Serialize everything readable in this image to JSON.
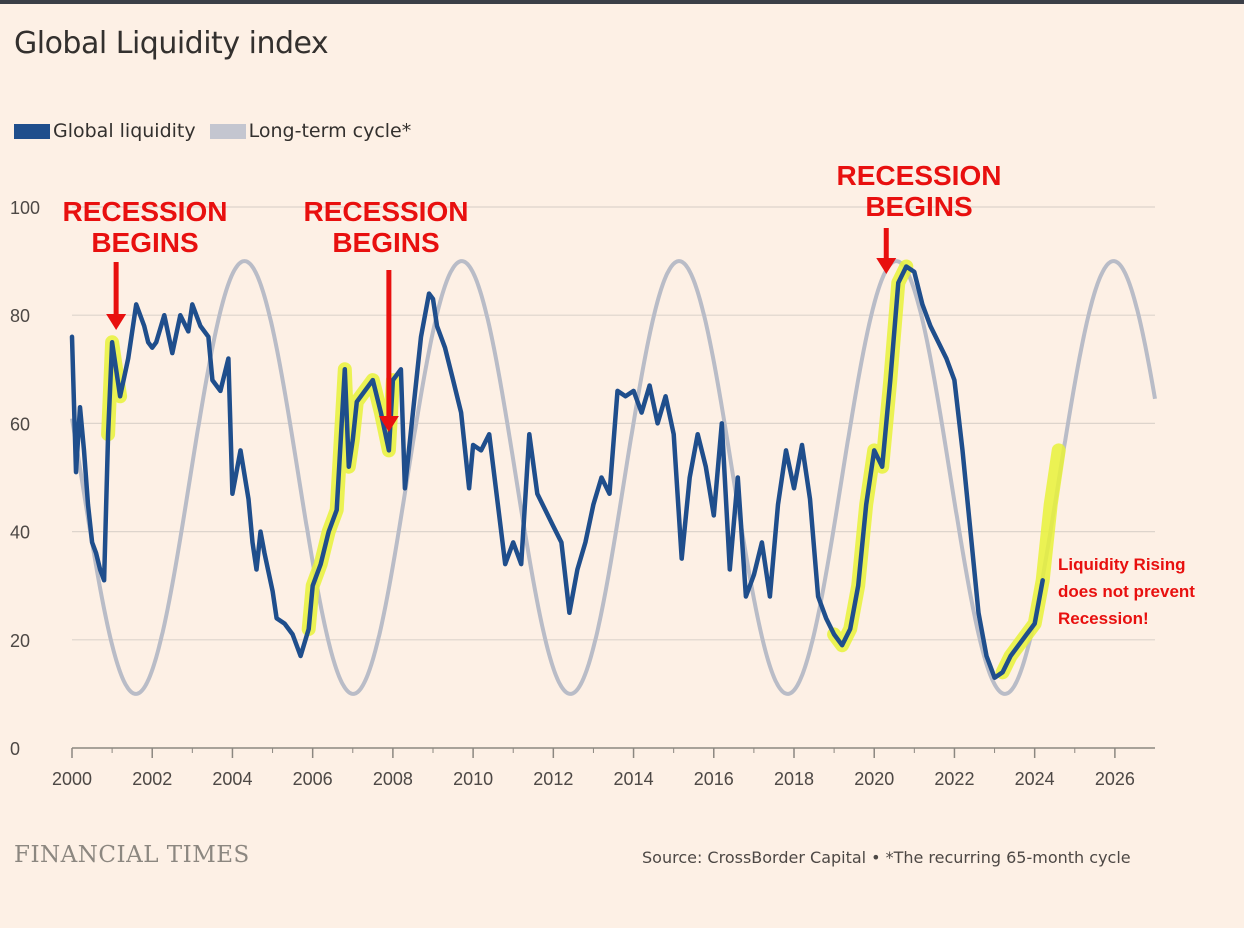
{
  "title": "Global Liquidity index",
  "legend": {
    "global_liquidity": "Global liquidity",
    "long_term_cycle": "Long-term cycle*"
  },
  "colors": {
    "global_liquidity": "#1f4e8c",
    "long_term_cycle": "#b9bcc7",
    "highlight": "#e8f23a",
    "annotation": "#e8100f",
    "grid": "#ddd4cc"
  },
  "annotations": {
    "recession_1": {
      "line1": "RECESSION",
      "line2": "BEGINS",
      "year": 2001.1
    },
    "recession_2": {
      "line1": "RECESSION",
      "line2": "BEGINS",
      "year": 2007.9
    },
    "recession_3": {
      "line1": "RECESSION",
      "line2": "BEGINS",
      "year": 2020.3
    },
    "note": {
      "line1": "Liquidity Rising",
      "line2": "does not prevent",
      "line3": "Recession!"
    }
  },
  "footer": {
    "logo": "FINANCIAL TIMES",
    "source": "Source: CrossBorder Capital",
    "bullet": "•",
    "footnote": "*The recurring 65-month cycle"
  },
  "chart_data": {
    "type": "line",
    "title": "Global Liquidity index",
    "xlabel": "",
    "ylabel": "",
    "xlim": [
      2000,
      2027
    ],
    "ylim": [
      0,
      100
    ],
    "x_ticks": [
      2000,
      2002,
      2004,
      2006,
      2008,
      2010,
      2012,
      2014,
      2016,
      2018,
      2020,
      2022,
      2024,
      2026
    ],
    "x_tick_labels": [
      "2000",
      "2002",
      "2004",
      "2006",
      "2008",
      "2010",
      "2012",
      "2014",
      "2016",
      "2018",
      "2020",
      "2022",
      "2024",
      "2026"
    ],
    "y_ticks": [
      0,
      20,
      40,
      60,
      80,
      100
    ],
    "y_tick_labels": [
      "0",
      "20",
      "40",
      "60",
      "80",
      "100"
    ],
    "grid": true,
    "series": [
      {
        "name": "Long-term cycle*",
        "kind": "cycle",
        "center": 50,
        "amplitude": 40,
        "period_months": 65,
        "peak_at": 2004.3,
        "x_start": 2000,
        "x_end": 2027
      },
      {
        "name": "Global liquidity",
        "x": [
          2000.0,
          2000.1,
          2000.2,
          2000.3,
          2000.4,
          2000.5,
          2000.6,
          2000.7,
          2000.8,
          2000.9,
          2001.0,
          2001.1,
          2001.2,
          2001.4,
          2001.6,
          2001.8,
          2001.9,
          2002.0,
          2002.1,
          2002.3,
          2002.5,
          2002.7,
          2002.9,
          2003.0,
          2003.2,
          2003.4,
          2003.5,
          2003.7,
          2003.9,
          2004.0,
          2004.2,
          2004.4,
          2004.5,
          2004.6,
          2004.7,
          2004.8,
          2005.0,
          2005.1,
          2005.3,
          2005.5,
          2005.7,
          2005.9,
          2006.0,
          2006.2,
          2006.4,
          2006.6,
          2006.8,
          2006.9,
          2007.0,
          2007.1,
          2007.3,
          2007.5,
          2007.7,
          2007.9,
          2008.0,
          2008.2,
          2008.3,
          2008.5,
          2008.7,
          2008.9,
          2009.0,
          2009.1,
          2009.3,
          2009.5,
          2009.7,
          2009.9,
          2010.0,
          2010.2,
          2010.4,
          2010.6,
          2010.8,
          2011.0,
          2011.2,
          2011.4,
          2011.6,
          2011.8,
          2012.0,
          2012.2,
          2012.4,
          2012.6,
          2012.8,
          2013.0,
          2013.2,
          2013.4,
          2013.6,
          2013.8,
          2014.0,
          2014.2,
          2014.4,
          2014.6,
          2014.8,
          2015.0,
          2015.2,
          2015.4,
          2015.6,
          2015.8,
          2016.0,
          2016.2,
          2016.4,
          2016.6,
          2016.8,
          2017.0,
          2017.2,
          2017.4,
          2017.6,
          2017.8,
          2018.0,
          2018.2,
          2018.4,
          2018.6,
          2018.8,
          2019.0,
          2019.2,
          2019.4,
          2019.6,
          2019.8,
          2020.0,
          2020.2,
          2020.4,
          2020.6,
          2020.8,
          2021.0,
          2021.2,
          2021.4,
          2021.6,
          2021.8,
          2022.0,
          2022.2,
          2022.4,
          2022.6,
          2022.8,
          2023.0,
          2023.2,
          2023.4,
          2023.6,
          2023.8,
          2024.0,
          2024.2
        ],
        "y": [
          76,
          51,
          63,
          55,
          45,
          38,
          36,
          33,
          31,
          58,
          75,
          70,
          65,
          72,
          82,
          78,
          75,
          74,
          75,
          80,
          73,
          80,
          77,
          82,
          78,
          76,
          68,
          66,
          72,
          47,
          55,
          46,
          38,
          33,
          40,
          36,
          29,
          24,
          23,
          21,
          17,
          22,
          30,
          34,
          40,
          44,
          70,
          52,
          57,
          64,
          66,
          68,
          62,
          55,
          68,
          70,
          48,
          62,
          76,
          84,
          83,
          78,
          74,
          68,
          62,
          48,
          56,
          55,
          58,
          46,
          34,
          38,
          34,
          58,
          47,
          44,
          41,
          38,
          25,
          33,
          38,
          45,
          50,
          47,
          66,
          65,
          66,
          62,
          67,
          60,
          65,
          58,
          35,
          50,
          58,
          52,
          43,
          60,
          33,
          50,
          28,
          32,
          38,
          28,
          45,
          55,
          48,
          56,
          46,
          28,
          24,
          21,
          19,
          22,
          30,
          45,
          55,
          52,
          68,
          86,
          89,
          88,
          82,
          78,
          75,
          72,
          68,
          55,
          40,
          25,
          17,
          13,
          14,
          17,
          19,
          21,
          23,
          31
        ]
      }
    ],
    "highlights": [
      {
        "x_start": 2000.9,
        "x_end": 2001.2
      },
      {
        "x_start": 2005.9,
        "x_end": 2008.0
      },
      {
        "x_start": 2018.9,
        "x_end": 2020.8
      },
      {
        "x_start": 2023.2,
        "x_end": 2024.6,
        "extra": {
          "x": [
            2024.2,
            2024.4,
            2024.6
          ],
          "y": [
            31,
            45,
            55
          ]
        }
      }
    ]
  }
}
